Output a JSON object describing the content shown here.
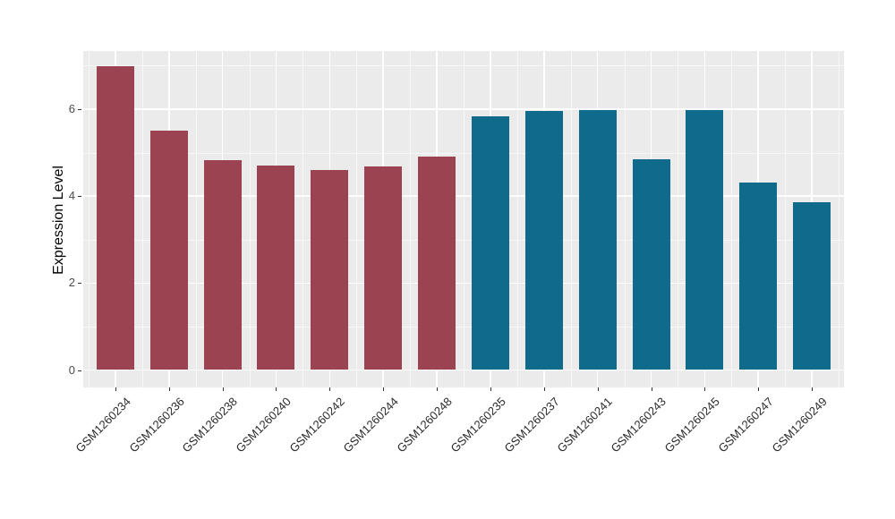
{
  "chart_data": {
    "type": "bar",
    "title": "",
    "xlabel": "",
    "ylabel": "Expression Level",
    "categories": [
      "GSM1260234",
      "GSM1260236",
      "GSM1260238",
      "GSM1260240",
      "GSM1260242",
      "GSM1260244",
      "GSM1260248",
      "GSM1260235",
      "GSM1260237",
      "GSM1260241",
      "GSM1260243",
      "GSM1260245",
      "GSM1260247",
      "GSM1260249"
    ],
    "values": [
      6.99,
      5.5,
      4.83,
      4.71,
      4.59,
      4.68,
      4.9,
      5.83,
      5.96,
      5.98,
      4.85,
      5.98,
      4.31,
      3.86
    ],
    "bar_groups": [
      "left_group",
      "left_group",
      "left_group",
      "left_group",
      "left_group",
      "left_group",
      "left_group",
      "right_group",
      "right_group",
      "right_group",
      "right_group",
      "right_group",
      "right_group",
      "right_group"
    ],
    "group_colors": {
      "left_group": "#9C4351",
      "right_group": "#0F6A8B"
    },
    "yticks": [
      0,
      2,
      4,
      6
    ],
    "minor_yticks": [
      1,
      3,
      5,
      7
    ],
    "ylim": [
      -0.35,
      7.35
    ],
    "grid": "on",
    "legend": "none",
    "panel_bg": "#EBEBEB",
    "grid_color": "#FFFFFF",
    "tick_label_color": "#4D4D4D",
    "x_label_angle_deg": 45
  }
}
